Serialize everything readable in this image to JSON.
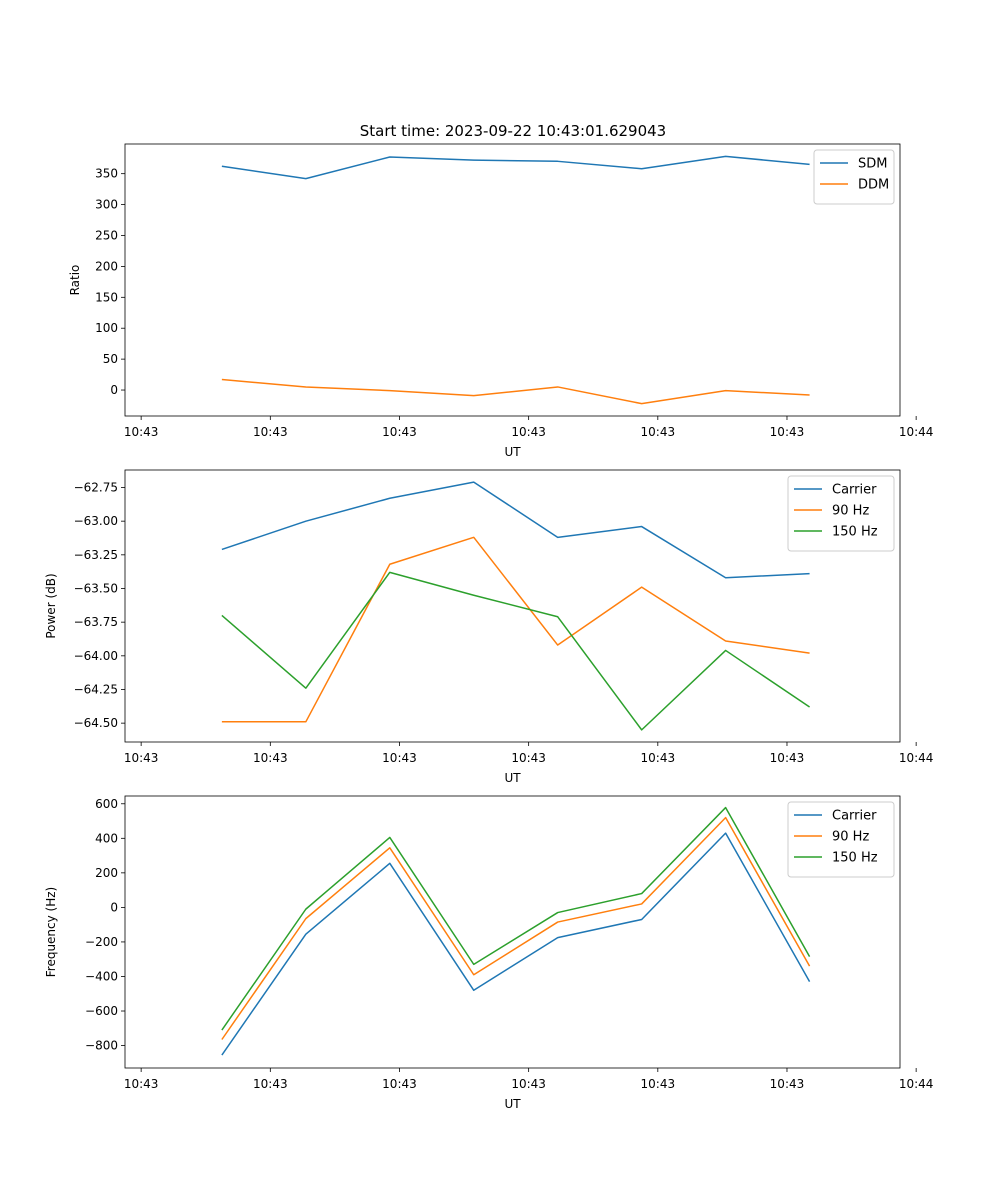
{
  "figure_title": "Start time: 2023-09-22 10:43:01.629043",
  "chart_data": [
    {
      "type": "line",
      "title": "Start time: 2023-09-22 10:43:01.629043",
      "xlabel": "UT",
      "ylabel": "Ratio",
      "x": [
        0.75,
        1.4,
        2.05,
        2.7,
        3.35,
        4.0,
        4.65,
        5.3
      ],
      "xlim": [
        0.0,
        6.0
      ],
      "xticks": [
        0.125,
        1.125,
        2.125,
        3.125,
        4.125,
        5.125,
        6.125
      ],
      "xtick_labels": [
        "10:43",
        "10:43",
        "10:43",
        "10:43",
        "10:43",
        "10:43",
        "10:44"
      ],
      "ylim": [
        -42,
        398
      ],
      "yticks": [
        0,
        50,
        100,
        150,
        200,
        250,
        300,
        350
      ],
      "ytick_labels": [
        "0",
        "50",
        "100",
        "150",
        "200",
        "250",
        "300",
        "350"
      ],
      "legend_position": "top-right",
      "series": [
        {
          "name": "SDM",
          "color": "#1f77b4",
          "values": [
            362,
            342,
            377,
            372,
            370,
            358,
            378,
            365
          ]
        },
        {
          "name": "DDM",
          "color": "#ff7f0e",
          "values": [
            17,
            5,
            -1,
            -9,
            5,
            -22,
            -1,
            -8
          ]
        }
      ]
    },
    {
      "type": "line",
      "title": "",
      "xlabel": "UT",
      "ylabel": "Power (dB)",
      "x": [
        0.75,
        1.4,
        2.05,
        2.7,
        3.35,
        4.0,
        4.65,
        5.3
      ],
      "xlim": [
        0.0,
        6.0
      ],
      "xticks": [
        0.125,
        1.125,
        2.125,
        3.125,
        4.125,
        5.125,
        6.125
      ],
      "xtick_labels": [
        "10:43",
        "10:43",
        "10:43",
        "10:43",
        "10:43",
        "10:43",
        "10:44"
      ],
      "ylim": [
        -64.64,
        -62.62
      ],
      "yticks": [
        -64.5,
        -64.25,
        -64.0,
        -63.75,
        -63.5,
        -63.25,
        -63.0,
        -62.75
      ],
      "ytick_labels": [
        "−64.50",
        "−64.25",
        "−64.00",
        "−63.75",
        "−63.50",
        "−63.25",
        "−63.00",
        "−62.75"
      ],
      "legend_position": "top-right",
      "series": [
        {
          "name": "Carrier",
          "color": "#1f77b4",
          "values": [
            -63.21,
            -63.0,
            -62.83,
            -62.71,
            -63.12,
            -63.04,
            -63.42,
            -63.39
          ]
        },
        {
          "name": "90 Hz",
          "color": "#ff7f0e",
          "values": [
            -64.49,
            -64.49,
            -63.32,
            -63.12,
            -63.92,
            -63.49,
            -63.89,
            -63.98
          ]
        },
        {
          "name": "150 Hz",
          "color": "#2ca02c",
          "values": [
            -63.7,
            -64.24,
            -63.38,
            -63.55,
            -63.71,
            -64.55,
            -63.96,
            -64.38
          ]
        }
      ]
    },
    {
      "type": "line",
      "title": "",
      "xlabel": "UT",
      "ylabel": "Frequency (Hz)",
      "x": [
        0.75,
        1.4,
        2.05,
        2.7,
        3.35,
        4.0,
        4.65,
        5.3
      ],
      "xlim": [
        0.0,
        6.0
      ],
      "xticks": [
        0.125,
        1.125,
        2.125,
        3.125,
        4.125,
        5.125,
        6.125
      ],
      "xtick_labels": [
        "10:43",
        "10:43",
        "10:43",
        "10:43",
        "10:43",
        "10:43",
        "10:44"
      ],
      "ylim": [
        -930,
        645
      ],
      "yticks": [
        -800,
        -600,
        -400,
        -200,
        0,
        200,
        400,
        600
      ],
      "ytick_labels": [
        "−800",
        "−600",
        "−400",
        "−200",
        "0",
        "200",
        "400",
        "600"
      ],
      "legend_position": "top-right",
      "series": [
        {
          "name": "Carrier",
          "color": "#1f77b4",
          "values": [
            -855,
            -155,
            255,
            -480,
            -175,
            -70,
            430,
            -430
          ]
        },
        {
          "name": "90 Hz",
          "color": "#ff7f0e",
          "values": [
            -765,
            -65,
            345,
            -390,
            -85,
            20,
            520,
            -340
          ]
        },
        {
          "name": "150 Hz",
          "color": "#2ca02c",
          "values": [
            -710,
            -10,
            405,
            -330,
            -30,
            80,
            578,
            -285
          ]
        }
      ]
    }
  ]
}
